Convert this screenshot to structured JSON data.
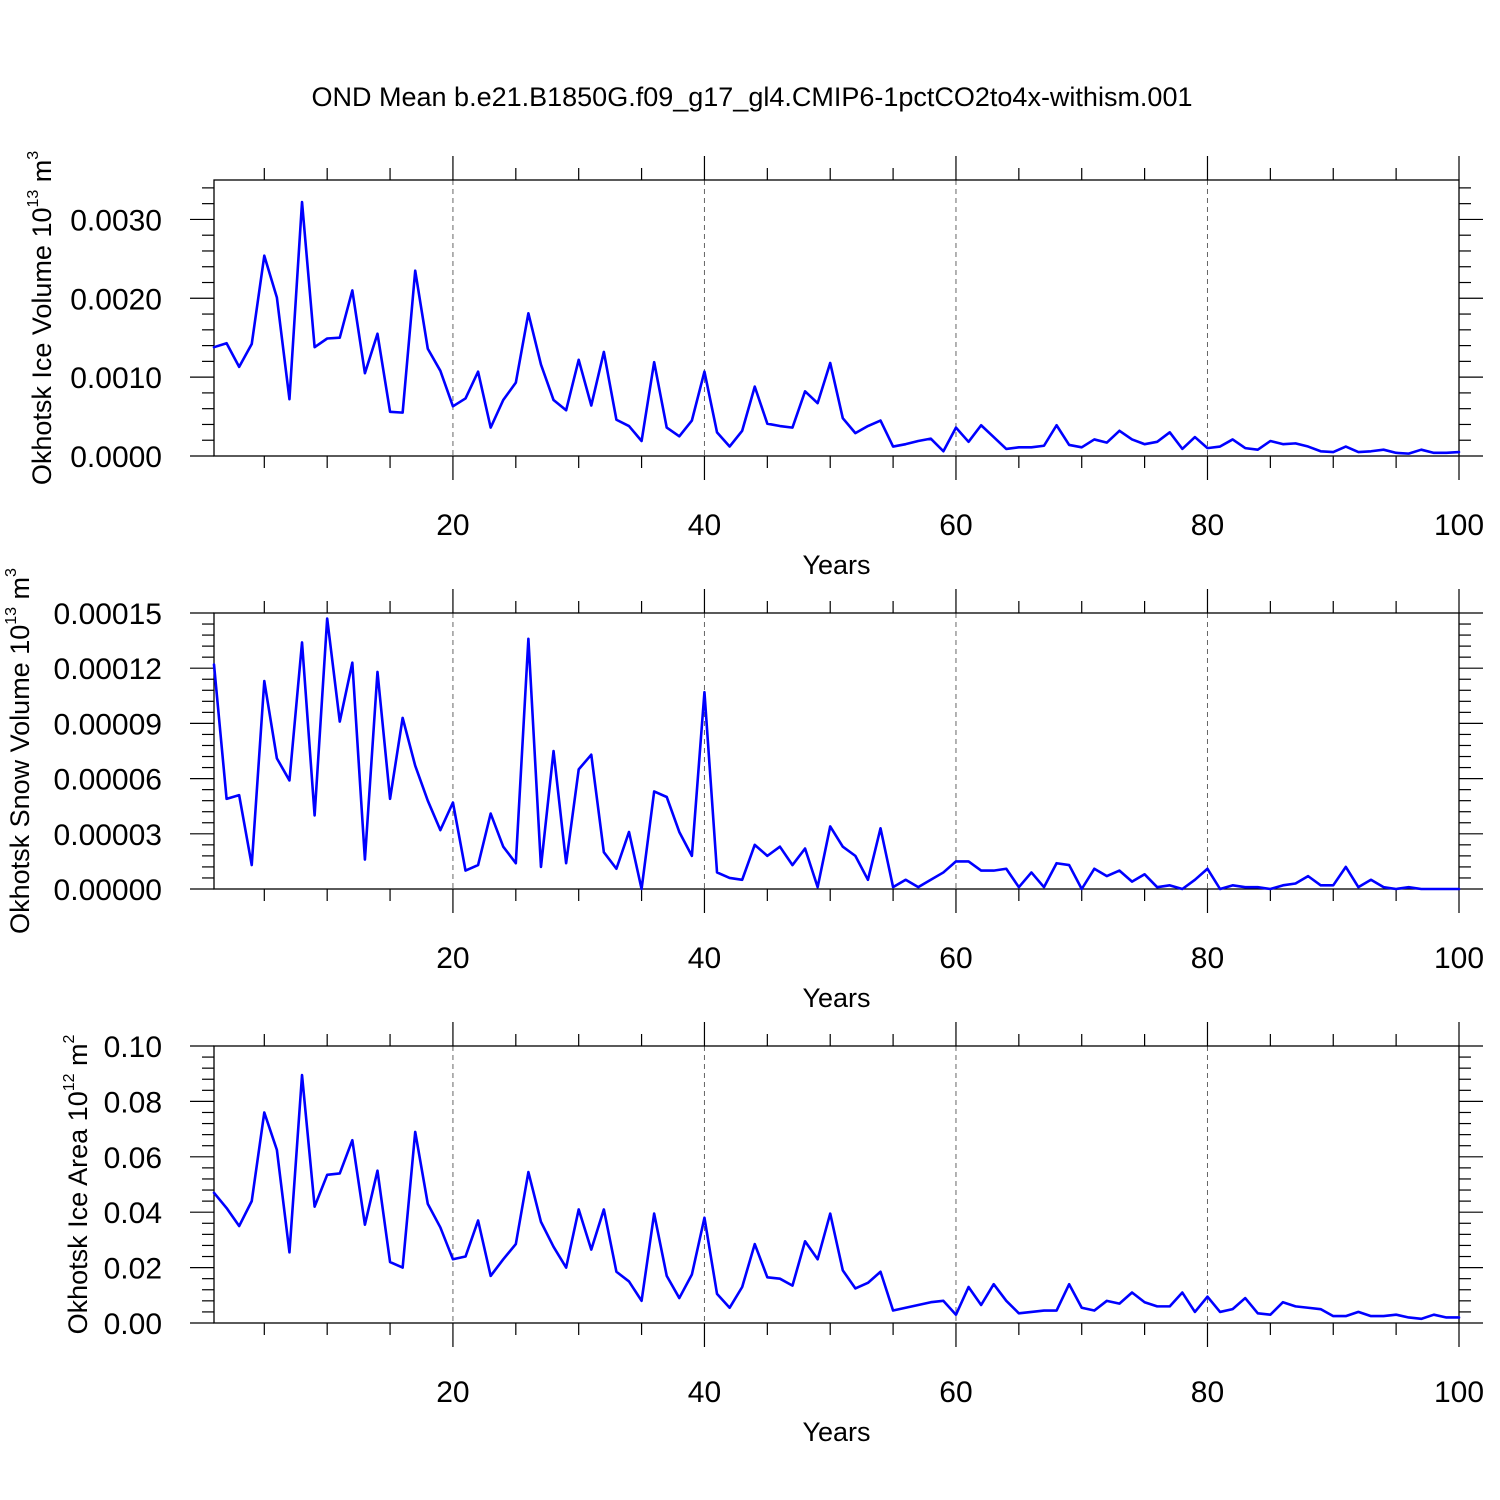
{
  "title": "OND Mean b.e21.B1850G.f09_g17_gl4.CMIP6-1pctCO2to4x-withism.001",
  "style": {
    "line_color": "#0000ff",
    "grid_color": "#666666",
    "frame_color": "#000000"
  },
  "chart_data": [
    {
      "type": "line",
      "ylabel": "Okhotsk Ice Volume 10",
      "ylabel_exp": "13",
      "ylabel_unit": " m",
      "ylabel_unit_exp": "3",
      "xlabel": "Years",
      "xlim": [
        1,
        100
      ],
      "ylim": [
        0,
        0.0035
      ],
      "xticks": [
        20,
        40,
        60,
        80,
        100
      ],
      "xtick_labels": [
        "20",
        "40",
        "60",
        "80",
        "100"
      ],
      "yticks": [
        0,
        0.001,
        0.002,
        0.003
      ],
      "ytick_labels": [
        "0.0000",
        "0.0010",
        "0.0020",
        "0.0030"
      ],
      "grid": "x-dashed",
      "series": [
        {
          "values": [
            0.00138,
            0.00143,
            0.00113,
            0.00142,
            0.00254,
            0.00201,
            0.00072,
            0.00322,
            0.00138,
            0.00149,
            0.0015,
            0.0021,
            0.00105,
            0.00155,
            0.00056,
            0.00055,
            0.00235,
            0.00136,
            0.00108,
            0.00063,
            0.00073,
            0.00107,
            0.00036,
            0.00071,
            0.00093,
            0.00181,
            0.00116,
            0.00071,
            0.00058,
            0.00122,
            0.00064,
            0.00132,
            0.00046,
            0.00038,
            0.00019,
            0.00119,
            0.00036,
            0.00025,
            0.00045,
            0.00107,
            0.0003,
            0.00012,
            0.00032,
            0.00088,
            0.00041,
            0.00038,
            0.00036,
            0.00082,
            0.00067,
            0.00118,
            0.00048,
            0.00029,
            0.00038,
            0.00045,
            0.00012,
            0.00015,
            0.00019,
            0.00022,
            6e-05,
            0.00036,
            0.00018,
            0.00039,
            0.00024,
            9e-05,
            0.00011,
            0.00011,
            0.00013,
            0.00039,
            0.00014,
            0.00011,
            0.00021,
            0.00017,
            0.00032,
            0.00021,
            0.00015,
            0.00018,
            0.0003,
            9e-05,
            0.00024,
            0.0001,
            0.00012,
            0.00021,
            0.0001,
            8e-05,
            0.00019,
            0.00015,
            0.00016,
            0.00012,
            6e-05,
            5e-05,
            0.00012,
            5e-05,
            6e-05,
            8e-05,
            4e-05,
            3e-05,
            8e-05,
            4e-05,
            4e-05,
            5e-05
          ]
        }
      ]
    },
    {
      "type": "line",
      "ylabel": "Okhotsk Snow Volume 10",
      "ylabel_exp": "13",
      "ylabel_unit": " m",
      "ylabel_unit_exp": "3",
      "xlabel": "Years",
      "xlim": [
        1,
        100
      ],
      "ylim": [
        0,
        0.00015
      ],
      "xticks": [
        20,
        40,
        60,
        80,
        100
      ],
      "xtick_labels": [
        "20",
        "40",
        "60",
        "80",
        "100"
      ],
      "yticks": [
        0,
        3e-05,
        6e-05,
        9e-05,
        0.00012,
        0.00015
      ],
      "ytick_labels": [
        "0.00000",
        "0.00003",
        "0.00006",
        "0.00009",
        "0.00012",
        "0.00015"
      ],
      "grid": "x-dashed",
      "series": [
        {
          "values": [
            0.000122,
            4.9e-05,
            5.1e-05,
            1.3e-05,
            0.000113,
            7.1e-05,
            5.9e-05,
            0.000134,
            4e-05,
            0.000147,
            9.1e-05,
            0.000123,
            1.6e-05,
            0.000118,
            4.9e-05,
            9.3e-05,
            6.7e-05,
            4.8e-05,
            3.2e-05,
            4.7e-05,
            1e-05,
            1.3e-05,
            4.1e-05,
            2.3e-05,
            1.4e-05,
            0.000136,
            1.2e-05,
            7.5e-05,
            1.4e-05,
            6.5e-05,
            7.3e-05,
            2e-05,
            1.1e-05,
            3.1e-05,
            0.0,
            5.3e-05,
            5e-05,
            3.1e-05,
            1.8e-05,
            0.000107,
            9e-06,
            6e-06,
            5e-06,
            2.4e-05,
            1.8e-05,
            2.3e-05,
            1.3e-05,
            2.2e-05,
            1e-06,
            3.4e-05,
            2.3e-05,
            1.8e-05,
            5e-06,
            3.3e-05,
            1e-06,
            5e-06,
            1e-06,
            5e-06,
            9e-06,
            1.5e-05,
            1.5e-05,
            1e-05,
            1e-05,
            1.1e-05,
            1e-06,
            9e-06,
            1e-06,
            1.4e-05,
            1.3e-05,
            0.0,
            1.1e-05,
            7e-06,
            1e-05,
            4e-06,
            8e-06,
            1e-06,
            2e-06,
            0.0,
            5e-06,
            1.1e-05,
            0.0,
            2e-06,
            1e-06,
            1e-06,
            0.0,
            2e-06,
            3e-06,
            7e-06,
            2e-06,
            2e-06,
            1.2e-05,
            1e-06,
            5e-06,
            1e-06,
            0.0,
            1e-06,
            0.0,
            0.0,
            0.0,
            0.0
          ]
        }
      ]
    },
    {
      "type": "line",
      "ylabel": "Okhotsk Ice Area 10",
      "ylabel_exp": "12",
      "ylabel_unit": " m",
      "ylabel_unit_exp": "2",
      "xlabel": "Years",
      "xlim": [
        1,
        100
      ],
      "ylim": [
        0,
        0.1
      ],
      "xticks": [
        20,
        40,
        60,
        80,
        100
      ],
      "xtick_labels": [
        "20",
        "40",
        "60",
        "80",
        "100"
      ],
      "yticks": [
        0,
        0.02,
        0.04,
        0.06,
        0.08,
        0.1
      ],
      "ytick_labels": [
        "0.00",
        "0.02",
        "0.04",
        "0.06",
        "0.08",
        "0.10"
      ],
      "grid": "x-dashed",
      "series": [
        {
          "values": [
            0.047,
            0.0415,
            0.035,
            0.044,
            0.076,
            0.0625,
            0.0255,
            0.0895,
            0.042,
            0.0535,
            0.054,
            0.066,
            0.0355,
            0.055,
            0.022,
            0.02,
            0.069,
            0.043,
            0.0345,
            0.023,
            0.024,
            0.037,
            0.017,
            0.023,
            0.0285,
            0.0545,
            0.0365,
            0.0275,
            0.02,
            0.041,
            0.0265,
            0.041,
            0.0185,
            0.015,
            0.008,
            0.0395,
            0.017,
            0.009,
            0.0175,
            0.038,
            0.0105,
            0.0055,
            0.013,
            0.0285,
            0.0165,
            0.016,
            0.0135,
            0.0295,
            0.023,
            0.0395,
            0.019,
            0.0125,
            0.0145,
            0.0185,
            0.0045,
            0.0055,
            0.0065,
            0.0075,
            0.008,
            0.003,
            0.013,
            0.0065,
            0.014,
            0.008,
            0.0035,
            0.004,
            0.0045,
            0.0045,
            0.014,
            0.0055,
            0.0045,
            0.008,
            0.007,
            0.011,
            0.0075,
            0.006,
            0.006,
            0.011,
            0.004,
            0.0095,
            0.004,
            0.005,
            0.009,
            0.0035,
            0.003,
            0.0075,
            0.006,
            0.0055,
            0.005,
            0.0025,
            0.0025,
            0.004,
            0.0025,
            0.0025,
            0.003,
            0.002,
            0.0015,
            0.003,
            0.002,
            0.002
          ]
        }
      ]
    }
  ]
}
